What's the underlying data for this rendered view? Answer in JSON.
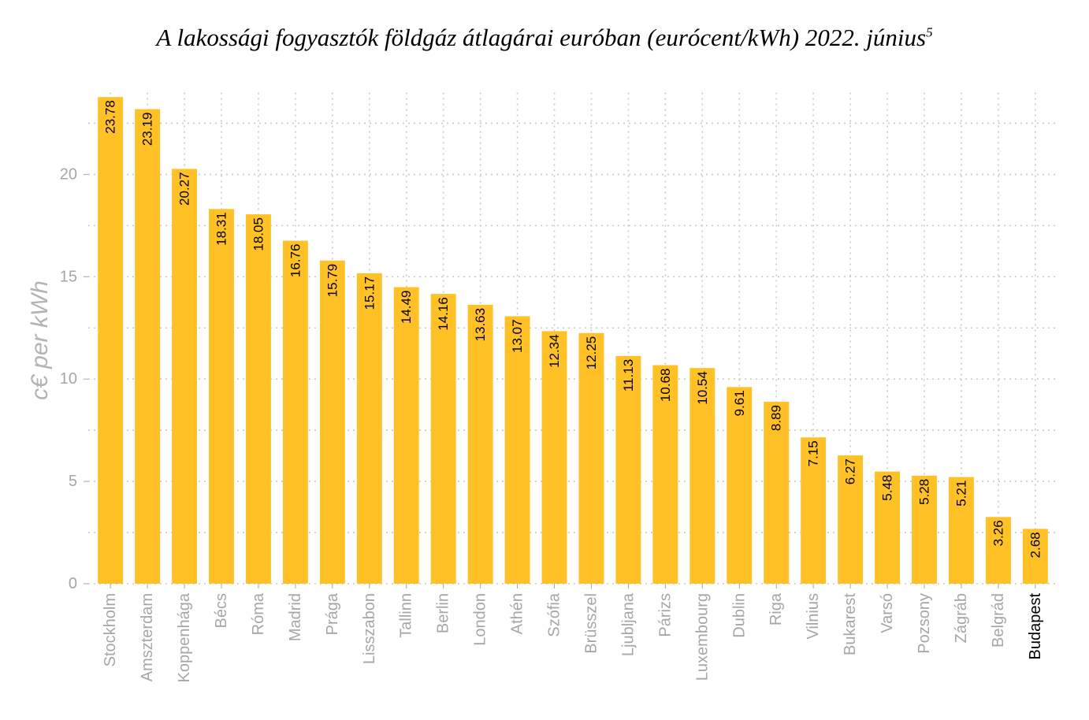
{
  "chart_data": {
    "type": "bar",
    "title": "A lakossági fogyasztók földgáz átlagárai euróban (eurócent/kWh) 2022. június",
    "title_sup": "5",
    "ylabel": "c€ per kWh",
    "xlabel": "",
    "ylim": [
      0,
      24
    ],
    "yticks": [
      0,
      5,
      10,
      15,
      20
    ],
    "grid": "dotted",
    "bar_color": "#FFC125",
    "highlight_category": "Budapest",
    "categories": [
      "Stockholm",
      "Amszterdam",
      "Koppenhága",
      "Bécs",
      "Róma",
      "Madrid",
      "Prága",
      "Lisszabon",
      "Tallinn",
      "Berlin",
      "London",
      "Athén",
      "Szófia",
      "Brüsszel",
      "Ljubljana",
      "Párizs",
      "Luxembourg",
      "Dublin",
      "Riga",
      "Vilnius",
      "Bukarest",
      "Varsó",
      "Pozsony",
      "Zágráb",
      "Belgrád",
      "Budapest"
    ],
    "values": [
      23.78,
      23.19,
      20.27,
      18.31,
      18.05,
      16.76,
      15.79,
      15.17,
      14.49,
      14.16,
      13.63,
      13.07,
      12.34,
      12.25,
      11.13,
      10.68,
      10.54,
      9.61,
      8.89,
      7.15,
      6.27,
      5.48,
      5.28,
      5.21,
      3.26,
      2.68
    ],
    "value_labels": [
      "23.78",
      "23.19",
      "20.27",
      "18.31",
      "18.05",
      "16.76",
      "15.79",
      "15.17",
      "14.49",
      "14.16",
      "13.63",
      "13.07",
      "12.34",
      "12.25",
      "11.13",
      "10.68",
      "10.54",
      "9.61",
      "8.89",
      "7.15",
      "6.27",
      "5.48",
      "5.28",
      "5.21",
      "3.26",
      "2.68"
    ]
  }
}
